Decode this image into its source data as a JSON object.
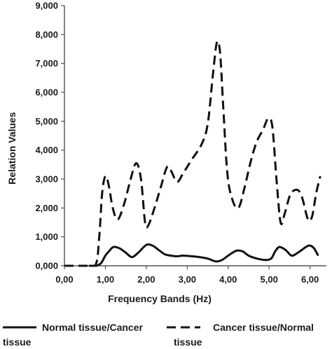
{
  "chart_data": {
    "type": "line",
    "title": "",
    "xlabel": "Frequency Bands (Hz)",
    "ylabel": "Relation Values",
    "xlim": [
      0,
      6.4
    ],
    "ylim": [
      0,
      9000
    ],
    "grid": false,
    "legend_position": "bottom",
    "x_tick_labels": [
      "0,00",
      "1,00",
      "2,00",
      "3,00",
      "4,00",
      "5,00",
      "6,00"
    ],
    "x_ticks": [
      0,
      1,
      2,
      3,
      4,
      5,
      6
    ],
    "y_tick_labels": [
      "0,000",
      "1,000",
      "2,000",
      "3,000",
      "4,000",
      "5,000",
      "6,000",
      "7,000",
      "8,000",
      "9,000"
    ],
    "y_ticks": [
      0,
      1000,
      2000,
      3000,
      4000,
      5000,
      6000,
      7000,
      8000,
      9000
    ],
    "series": [
      {
        "name": "Normal tissue/Cancer tissue",
        "legend_lines": [
          "Normal tissue/Cancer",
          "tissue"
        ],
        "style": "solid",
        "color": "#111111",
        "points": [
          [
            0.6,
            0
          ],
          [
            0.78,
            0
          ],
          [
            0.9,
            100
          ],
          [
            1.0,
            350
          ],
          [
            1.1,
            520
          ],
          [
            1.2,
            650
          ],
          [
            1.35,
            600
          ],
          [
            1.5,
            450
          ],
          [
            1.65,
            300
          ],
          [
            1.8,
            450
          ],
          [
            2.0,
            720
          ],
          [
            2.15,
            700
          ],
          [
            2.3,
            550
          ],
          [
            2.45,
            400
          ],
          [
            2.6,
            350
          ],
          [
            2.75,
            330
          ],
          [
            2.9,
            350
          ],
          [
            3.1,
            330
          ],
          [
            3.3,
            300
          ],
          [
            3.5,
            250
          ],
          [
            3.7,
            150
          ],
          [
            3.85,
            200
          ],
          [
            4.0,
            350
          ],
          [
            4.2,
            520
          ],
          [
            4.35,
            500
          ],
          [
            4.5,
            350
          ],
          [
            4.7,
            250
          ],
          [
            4.9,
            200
          ],
          [
            5.05,
            250
          ],
          [
            5.15,
            500
          ],
          [
            5.25,
            650
          ],
          [
            5.4,
            550
          ],
          [
            5.55,
            350
          ],
          [
            5.7,
            450
          ],
          [
            5.9,
            650
          ],
          [
            6.0,
            700
          ],
          [
            6.1,
            600
          ],
          [
            6.2,
            350
          ]
        ]
      },
      {
        "name": "Cancer tissue/Normal tissue",
        "legend_lines": [
          "Cancer tissue/Normal",
          "tissue"
        ],
        "style": "dashed",
        "color": "#111111",
        "points": [
          [
            0.0,
            0
          ],
          [
            0.4,
            0
          ],
          [
            0.75,
            0
          ],
          [
            0.85,
            1000
          ],
          [
            0.92,
            2500
          ],
          [
            1.0,
            3100
          ],
          [
            1.08,
            2800
          ],
          [
            1.18,
            2000
          ],
          [
            1.3,
            1600
          ],
          [
            1.45,
            2100
          ],
          [
            1.6,
            2900
          ],
          [
            1.75,
            3550
          ],
          [
            1.87,
            3000
          ],
          [
            1.97,
            1500
          ],
          [
            2.05,
            1400
          ],
          [
            2.2,
            2000
          ],
          [
            2.35,
            2700
          ],
          [
            2.5,
            3400
          ],
          [
            2.6,
            3300
          ],
          [
            2.75,
            2900
          ],
          [
            2.9,
            3200
          ],
          [
            3.1,
            3650
          ],
          [
            3.35,
            4200
          ],
          [
            3.5,
            4900
          ],
          [
            3.62,
            6500
          ],
          [
            3.72,
            7700
          ],
          [
            3.8,
            7400
          ],
          [
            3.88,
            5500
          ],
          [
            3.98,
            3200
          ],
          [
            4.1,
            2300
          ],
          [
            4.25,
            2000
          ],
          [
            4.4,
            2700
          ],
          [
            4.55,
            3600
          ],
          [
            4.7,
            4300
          ],
          [
            4.85,
            4700
          ],
          [
            4.98,
            5100
          ],
          [
            5.08,
            4800
          ],
          [
            5.18,
            3000
          ],
          [
            5.28,
            1500
          ],
          [
            5.38,
            1800
          ],
          [
            5.5,
            2400
          ],
          [
            5.6,
            2600
          ],
          [
            5.72,
            2600
          ],
          [
            5.82,
            2300
          ],
          [
            5.95,
            1600
          ],
          [
            6.05,
            1700
          ],
          [
            6.15,
            2500
          ],
          [
            6.25,
            3100
          ]
        ]
      }
    ]
  }
}
